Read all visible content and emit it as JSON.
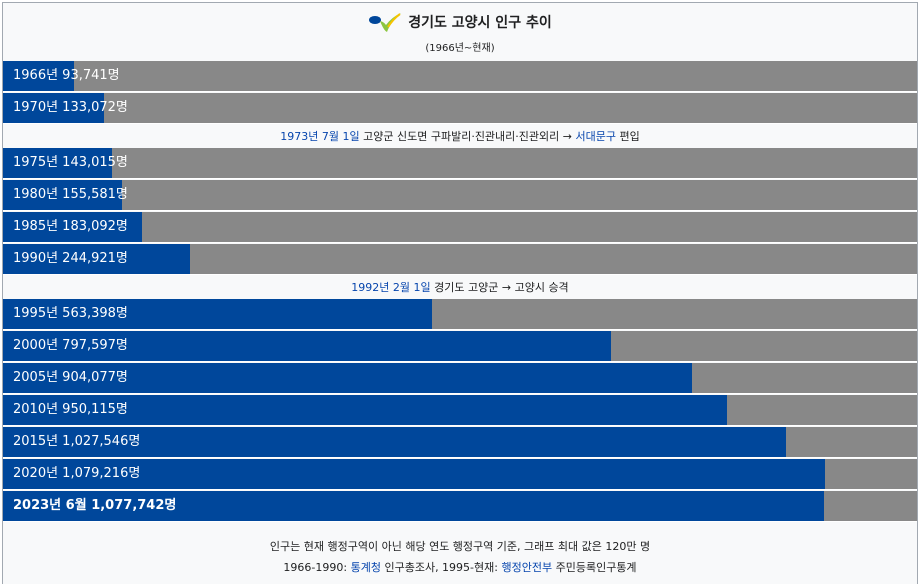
{
  "header": {
    "title": "경기도 고양시 인구 추이",
    "subtitle": "(1966년~현재)"
  },
  "notes": [
    {
      "date": "1973년 7월 1일",
      "place": "고양군",
      "text": "신도면 구파발리·진관내리·진관외리 →",
      "link": "서대문구",
      "suffix": "편입"
    },
    {
      "date": "1992년 2월 1일",
      "place": "",
      "text": "경기도 고양군 → 고양시 승격",
      "link": "",
      "suffix": ""
    }
  ],
  "footer": {
    "line1": "인구는 현재 행정구역이 아닌 해당 연도 행정구역 기준, 그래프 최대 값은 120만 명",
    "line2_prefix": "1966-1990:",
    "line2_link1": "통계청",
    "line2_mid": "인구총조사, 1995-현재:",
    "line2_link2": "행정안전부",
    "line2_suffix": "주민등록인구통계"
  },
  "colors": {
    "bar": "#00479b",
    "track": "#888888",
    "link": "#0645ad"
  },
  "chart_data": {
    "type": "bar",
    "orientation": "horizontal",
    "max": 1200000,
    "categories": [
      "1966년",
      "1970년",
      "1975년",
      "1980년",
      "1985년",
      "1990년",
      "1995년",
      "2000년",
      "2005년",
      "2010년",
      "2015년",
      "2020년",
      "2023년 6월"
    ],
    "labels": [
      "1966년 93,741명",
      "1970년 133,072명",
      "1975년 143,015명",
      "1980년 155,581명",
      "1985년 183,092명",
      "1990년 244,921명",
      "1995년 563,398명",
      "2000년 797,597명",
      "2005년 904,077명",
      "2010년 950,115명",
      "2015년 1,027,546명",
      "2020년 1,079,216명",
      "2023년 6월 1,077,742명"
    ],
    "values": [
      93741,
      133072,
      143015,
      155581,
      183092,
      244921,
      563398,
      797597,
      904077,
      950115,
      1027546,
      1079216,
      1077742
    ]
  }
}
